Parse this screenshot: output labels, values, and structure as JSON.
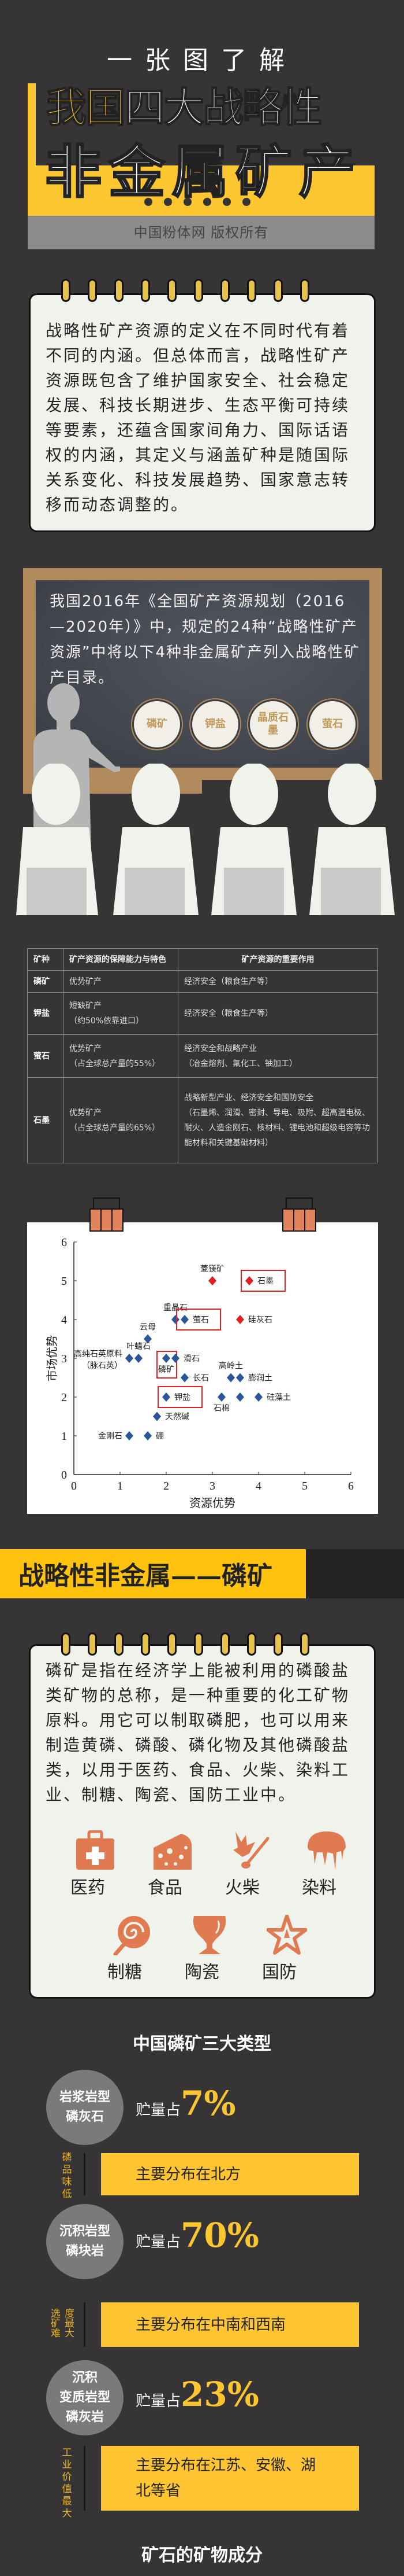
{
  "header": {
    "subtitle": "一张图了解",
    "title_highlight": "我国",
    "title_line1_rest": "四大战略性",
    "title_line2": "非金属矿产",
    "copyright": "中国粉体网 版权所有"
  },
  "intro": {
    "text": "战略性矿产资源的定义在不同时代有着不同的内涵。但总体而言，战略性矿产资源既包含了维护国家安全、社会稳定发展、科技长期进步、生态平衡可持续等要素，还蕴含国家间角力、国际话语权的内涵，其定义与涵盖矿种是随国际关系变化、科技发展趋势、国家意志转移而动态调整的。"
  },
  "blackboard": {
    "text": "我国2016年《全国矿产资源规划（2016—2020年）》中，规定的24种“战略性矿产资源”中将以下4种非金属矿产列入战略性矿产目录。",
    "minerals": [
      "磷矿",
      "钾盐",
      "晶质石墨",
      "萤石"
    ]
  },
  "table": {
    "headers": [
      "矿种",
      "矿产资源的保障能力与特色",
      "矿产资源的重要作用"
    ],
    "rows": [
      {
        "mineral": "磷矿",
        "capacity": [
          "优势矿产"
        ],
        "role": [
          "经济安全（粮食生产等）"
        ]
      },
      {
        "mineral": "钾盐",
        "capacity": [
          "短缺矿产",
          "（约50%依靠进口）"
        ],
        "role": [
          "经济安全（粮食生产等）"
        ]
      },
      {
        "mineral": "萤石",
        "capacity": [
          "优势矿产",
          "（占全球总产量的55%）"
        ],
        "role": [
          "经济安全和战略产业",
          "（冶金熔剂、氟化工、铀加工）"
        ]
      },
      {
        "mineral": "石墨",
        "capacity": [
          "优势矿产",
          "（占全球总产量的65%）"
        ],
        "role": [
          "战略新型产业、经济安全和国防安全",
          "（石墨烯、润滑、密封、导电、吸附、超高温电极、耐火、人造金刚石、核材料、锂电池和超级电容等功能材料和关键基础材料）"
        ]
      }
    ]
  },
  "chart_data": {
    "type": "scatter",
    "xlabel": "资源优势",
    "ylabel": "市场优势",
    "xlim": [
      0,
      6
    ],
    "ylim": [
      0,
      6
    ],
    "xticks": [
      "0",
      "1",
      "2",
      "3",
      "4",
      "5",
      "6"
    ],
    "yticks": [
      "0",
      "1",
      "2",
      "3",
      "4",
      "5",
      "6"
    ],
    "grid": false,
    "colors": {
      "normal": "#2a5599",
      "strategic_red": "#e02020",
      "highlight_box": "#e02020"
    },
    "points": [
      {
        "label": "菱镁矿",
        "x": 3.0,
        "y": 5,
        "color": "red",
        "label_pos": "above"
      },
      {
        "label": "石墨",
        "x": 3.8,
        "y": 5,
        "color": "red",
        "label_pos": "right",
        "highlight": true
      },
      {
        "label": "重晶石",
        "x": 2.2,
        "y": 4,
        "color": "blue",
        "label_pos": "above"
      },
      {
        "label": "萤石",
        "x": 2.4,
        "y": 4,
        "color": "blue",
        "label_pos": "right",
        "highlight": true
      },
      {
        "label": "硅灰石",
        "x": 3.6,
        "y": 4,
        "color": "red",
        "label_pos": "right"
      },
      {
        "label": "云母",
        "x": 1.6,
        "y": 3.5,
        "color": "blue",
        "label_pos": "above"
      },
      {
        "label": "高纯石英原料（脉石英）",
        "x": 1.2,
        "y": 3,
        "color": "blue",
        "label_pos": "left"
      },
      {
        "label": "叶蜡石",
        "x": 1.4,
        "y": 3,
        "color": "blue",
        "label_pos": "above"
      },
      {
        "label": "磷矿",
        "x": 2.0,
        "y": 3,
        "color": "blue",
        "label_pos": "below",
        "highlight": true
      },
      {
        "label": "滑石",
        "x": 2.2,
        "y": 3,
        "color": "blue",
        "label_pos": "right"
      },
      {
        "label": "长石",
        "x": 2.4,
        "y": 2.5,
        "color": "blue",
        "label_pos": "right"
      },
      {
        "label": "高岭土",
        "x": 3.4,
        "y": 2.5,
        "color": "blue",
        "label_pos": "above"
      },
      {
        "label": "膨润土",
        "x": 3.6,
        "y": 2.5,
        "color": "blue",
        "label_pos": "right"
      },
      {
        "label": "钾盐",
        "x": 2.0,
        "y": 2,
        "color": "blue",
        "label_pos": "right",
        "highlight": true
      },
      {
        "label": "石棉",
        "x": 3.2,
        "y": 2,
        "color": "blue",
        "label_pos": "below"
      },
      {
        "label": "",
        "x": 3.6,
        "y": 2,
        "color": "blue",
        "label_pos": "none"
      },
      {
        "label": "硅藻土",
        "x": 4.0,
        "y": 2,
        "color": "blue",
        "label_pos": "right"
      },
      {
        "label": "天然碱",
        "x": 1.8,
        "y": 1.5,
        "color": "blue",
        "label_pos": "right"
      },
      {
        "label": "金刚石",
        "x": 1.2,
        "y": 1,
        "color": "blue",
        "label_pos": "left"
      },
      {
        "label": "硼",
        "x": 1.6,
        "y": 1,
        "color": "blue",
        "label_pos": "right"
      }
    ]
  },
  "phosphate": {
    "banner_title": "战略性非金属——磷矿",
    "text": "磷矿是指在经济学上能被利用的磷酸盐类矿物的总称，是一种重要的化工矿物原料。用它可以制取磷肥，也可以用来制造黄磷、磷酸、磷化物及其他磷酸盐类，以用于医药、食品、火柴、染料工业、制糖、陶瓷、国防工业中。",
    "uses": [
      {
        "label": "医药",
        "icon": "first-aid-kit-icon"
      },
      {
        "label": "食品",
        "icon": "cheese-icon"
      },
      {
        "label": "火柴",
        "icon": "match-icon"
      },
      {
        "label": "染料",
        "icon": "paint-drip-icon"
      },
      {
        "label": "制糖",
        "icon": "lollipop-icon"
      },
      {
        "label": "陶瓷",
        "icon": "vase-icon"
      },
      {
        "label": "国防",
        "icon": "star-emblem-icon"
      }
    ],
    "types_title": "中国磷矿三大类型",
    "share_prefix": "贮量占",
    "types": [
      {
        "name_lines": [
          "岩浆岩型",
          "磷灰石"
        ],
        "share": "7%",
        "side": "磷品味低",
        "distribution": "主要分布在北方"
      },
      {
        "name_lines": [
          "沉积岩型",
          "磷块岩"
        ],
        "share": "70%",
        "side": "选矿难度最大",
        "distribution": "主要分布在中南和西南"
      },
      {
        "name_lines": [
          "沉积",
          "变质岩型",
          "磷灰岩"
        ],
        "share": "23%",
        "side": "工业价值最大",
        "distribution": "主要分布在江苏、安徽、湖北等省"
      }
    ],
    "next_title": "矿石的矿物成分"
  },
  "colors": {
    "background": "#363435",
    "accent_yellow": "#fcc630",
    "icon_orange": "#e07a50",
    "board": "#3a3d44",
    "frame": "#b08a5a"
  }
}
